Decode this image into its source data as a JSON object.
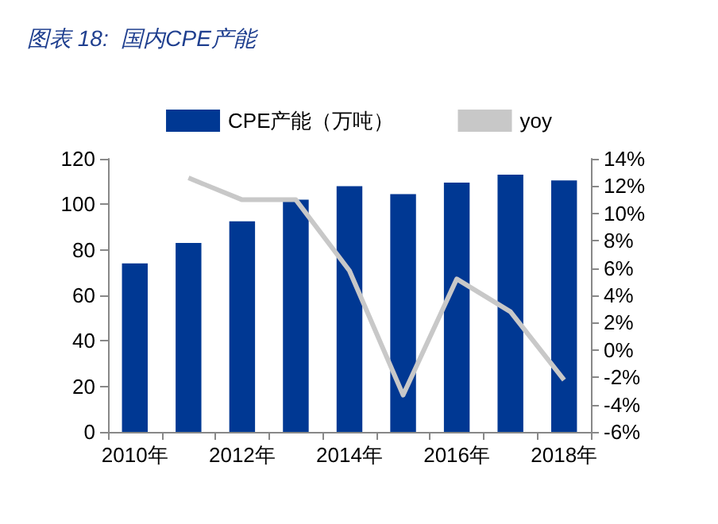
{
  "chart_data": {
    "type": "bar",
    "title": "图表 18:  国内CPE产能",
    "categories": [
      "2010年",
      null,
      "2012年",
      null,
      "2014年",
      null,
      "2016年",
      null,
      "2018年"
    ],
    "series": [
      {
        "name": "CPE产能（万吨）",
        "color": "#003893",
        "values": [
          74,
          83,
          92.5,
          102,
          108,
          104.5,
          109.5,
          113,
          110.5
        ]
      },
      {
        "name": "yoy",
        "type": "line",
        "axis": "y2",
        "color": "#c8c8c8",
        "marker": "none",
        "values": [
          null,
          12.6,
          11.0,
          11.0,
          5.8,
          -3.3,
          5.2,
          2.8,
          -2.2
        ]
      }
    ],
    "ylim": [
      0,
      120
    ],
    "yticks": [
      0,
      20,
      40,
      60,
      80,
      100,
      120
    ],
    "y2lim": [
      -6,
      14
    ],
    "y2ticks": [
      {
        "value": -6,
        "label": "-6%"
      },
      {
        "value": -4,
        "label": "-4%"
      },
      {
        "value": -2,
        "label": "-2%"
      },
      {
        "value": 0,
        "label": "0%"
      },
      {
        "value": 2,
        "label": "2%"
      },
      {
        "value": 4,
        "label": "4%"
      },
      {
        "value": 6,
        "label": "6%"
      },
      {
        "value": 8,
        "label": "8%"
      },
      {
        "value": 10,
        "label": "10%"
      },
      {
        "value": 12,
        "label": "12%"
      },
      {
        "value": 14,
        "label": "14%"
      }
    ],
    "grid": false,
    "legend": "top"
  }
}
